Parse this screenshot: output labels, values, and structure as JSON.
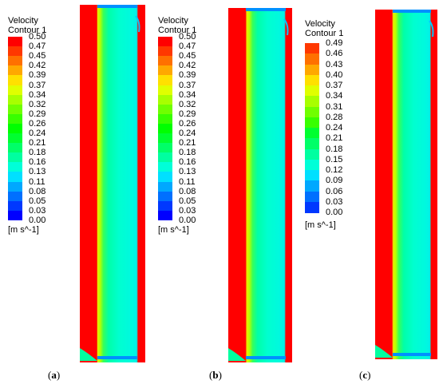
{
  "colormap": [
    "#0000ff",
    "#0038ff",
    "#0070ff",
    "#00a8ff",
    "#00e0ff",
    "#00ffd8",
    "#00ffa0",
    "#00ff68",
    "#00ff30",
    "#00ff00",
    "#38ff00",
    "#70ff00",
    "#a8ff00",
    "#e0ff00",
    "#ffe000",
    "#ffa800",
    "#ff7000",
    "#ff3800",
    "#ff0000"
  ],
  "panels": [
    {
      "legend": {
        "title_line1": "Velocity",
        "title_line2": "Contour 1",
        "ticks": [
          "0.50",
          "0.47",
          "0.45",
          "0.42",
          "0.39",
          "0.37",
          "0.34",
          "0.32",
          "0.29",
          "0.26",
          "0.24",
          "0.21",
          "0.18",
          "0.16",
          "0.13",
          "0.11",
          "0.08",
          "0.05",
          "0.03",
          "0.00"
        ],
        "unit": "[m s^-1]"
      },
      "caption_open": "(",
      "caption_letter": "a",
      "caption_close": ")"
    },
    {
      "legend": {
        "title_line1": "Velocity",
        "title_line2": "Contour 1",
        "ticks": [
          "0.50",
          "0.47",
          "0.45",
          "0.42",
          "0.39",
          "0.37",
          "0.34",
          "0.32",
          "0.29",
          "0.26",
          "0.24",
          "0.21",
          "0.18",
          "0.16",
          "0.13",
          "0.11",
          "0.08",
          "0.05",
          "0.03",
          "0.00"
        ],
        "unit": "[m s^-1]"
      },
      "caption_open": "(",
      "caption_letter": "b",
      "caption_close": ")"
    },
    {
      "legend": {
        "title_line1": "Velocity",
        "title_line2": "Contour 1",
        "ticks": [
          "0.49",
          "0.46",
          "0.43",
          "0.40",
          "0.37",
          "0.34",
          "0.31",
          "0.28",
          "0.24",
          "0.21",
          "0.18",
          "0.15",
          "0.12",
          "0.09",
          "0.06",
          "0.03",
          "0.00"
        ],
        "unit": "[m s^-1]"
      },
      "caption_open": "(",
      "caption_letter": "c",
      "caption_close": ")"
    }
  ]
}
